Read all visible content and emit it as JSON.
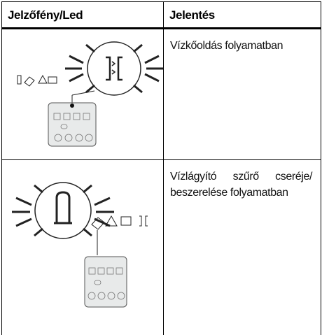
{
  "table": {
    "header": [
      "Jelzőfény/Led",
      "Jelentés"
    ],
    "rows": [
      {
        "meaning": "Vízkőoldás folyamatban"
      },
      {
        "meaning": "Vízlágyító szűrő cseréje/ beszerelése folyamatban"
      }
    ]
  }
}
